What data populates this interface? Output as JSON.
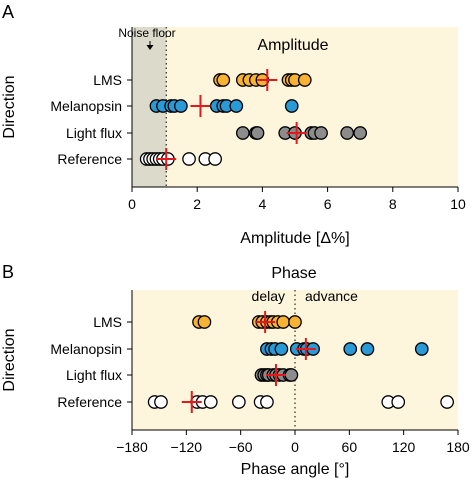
{
  "colors": {
    "background": "#fdf5dc",
    "noise_shade": "#dcdacb",
    "lms": "#f8b334",
    "melanopsin": "#2a9ad7",
    "light_flux": "#8c8c8c",
    "reference": "#ffffff",
    "marker_edge": "#000000",
    "mean_cross": "#e31a1c"
  },
  "chart_data": [
    {
      "panel": "A",
      "type": "scatter",
      "title": "Amplitude",
      "xlabel": "Amplitude [Δ%]",
      "ylabel": "Direction",
      "xlim": [
        0,
        10
      ],
      "xticks": [
        0,
        2,
        4,
        6,
        8,
        10
      ],
      "grid": false,
      "categories": [
        "LMS",
        "Melanopsin",
        "Light flux",
        "Reference"
      ],
      "noise_floor": {
        "label": "Noise floor",
        "value": 1.05
      },
      "series": [
        {
          "category": "LMS",
          "color_key": "lms",
          "values": [
            2.7,
            2.8,
            3.4,
            3.6,
            3.8,
            4.0,
            4.8,
            4.9,
            5.0,
            5.3
          ],
          "mean": 4.15
        },
        {
          "category": "Melanopsin",
          "color_key": "melanopsin",
          "values": [
            0.75,
            0.95,
            1.2,
            1.3,
            1.5,
            2.6,
            2.8,
            2.9,
            3.2,
            4.9
          ],
          "mean": 2.1
        },
        {
          "category": "Light flux",
          "color_key": "light_flux",
          "values": [
            3.4,
            3.8,
            3.85,
            4.7,
            5.0,
            5.5,
            5.6,
            5.8,
            6.6,
            7.0
          ],
          "mean": 5.05
        },
        {
          "category": "Reference",
          "color_key": "reference",
          "values": [
            0.45,
            0.55,
            0.65,
            0.75,
            0.85,
            0.95,
            1.1,
            1.75,
            2.25,
            2.55
          ],
          "mean": 1.05
        }
      ]
    },
    {
      "panel": "B",
      "type": "scatter",
      "title": "Phase",
      "xlabel": "Phase angle [°]",
      "ylabel": "Direction",
      "xlim": [
        -180,
        180
      ],
      "xticks": [
        -180,
        -120,
        -60,
        0,
        60,
        120,
        180
      ],
      "grid": false,
      "categories": [
        "LMS",
        "Melanopsin",
        "Light flux",
        "Reference"
      ],
      "zero_line": {
        "value": 0,
        "left_label": "delay",
        "right_label": "advance"
      },
      "series": [
        {
          "category": "LMS",
          "color_key": "lms",
          "values": [
            -106,
            -100,
            -40,
            -36,
            -31,
            -27,
            -24,
            -19,
            -13,
            0
          ],
          "mean": -33
        },
        {
          "category": "Melanopsin",
          "color_key": "melanopsin",
          "values": [
            -31,
            -26,
            -22,
            -15,
            2,
            10,
            13,
            20,
            61,
            80,
            140
          ],
          "mean": 12
        },
        {
          "category": "Light flux",
          "color_key": "light_flux",
          "values": [
            -37,
            -34,
            -31,
            -29,
            -24,
            -21,
            -17,
            -13,
            -6,
            -4
          ],
          "mean": -21
        },
        {
          "category": "Reference",
          "color_key": "reference",
          "values": [
            -155,
            -148,
            -108,
            -102,
            -93,
            -62,
            -38,
            -31,
            103,
            114,
            168
          ],
          "mean": -114
        }
      ]
    }
  ]
}
